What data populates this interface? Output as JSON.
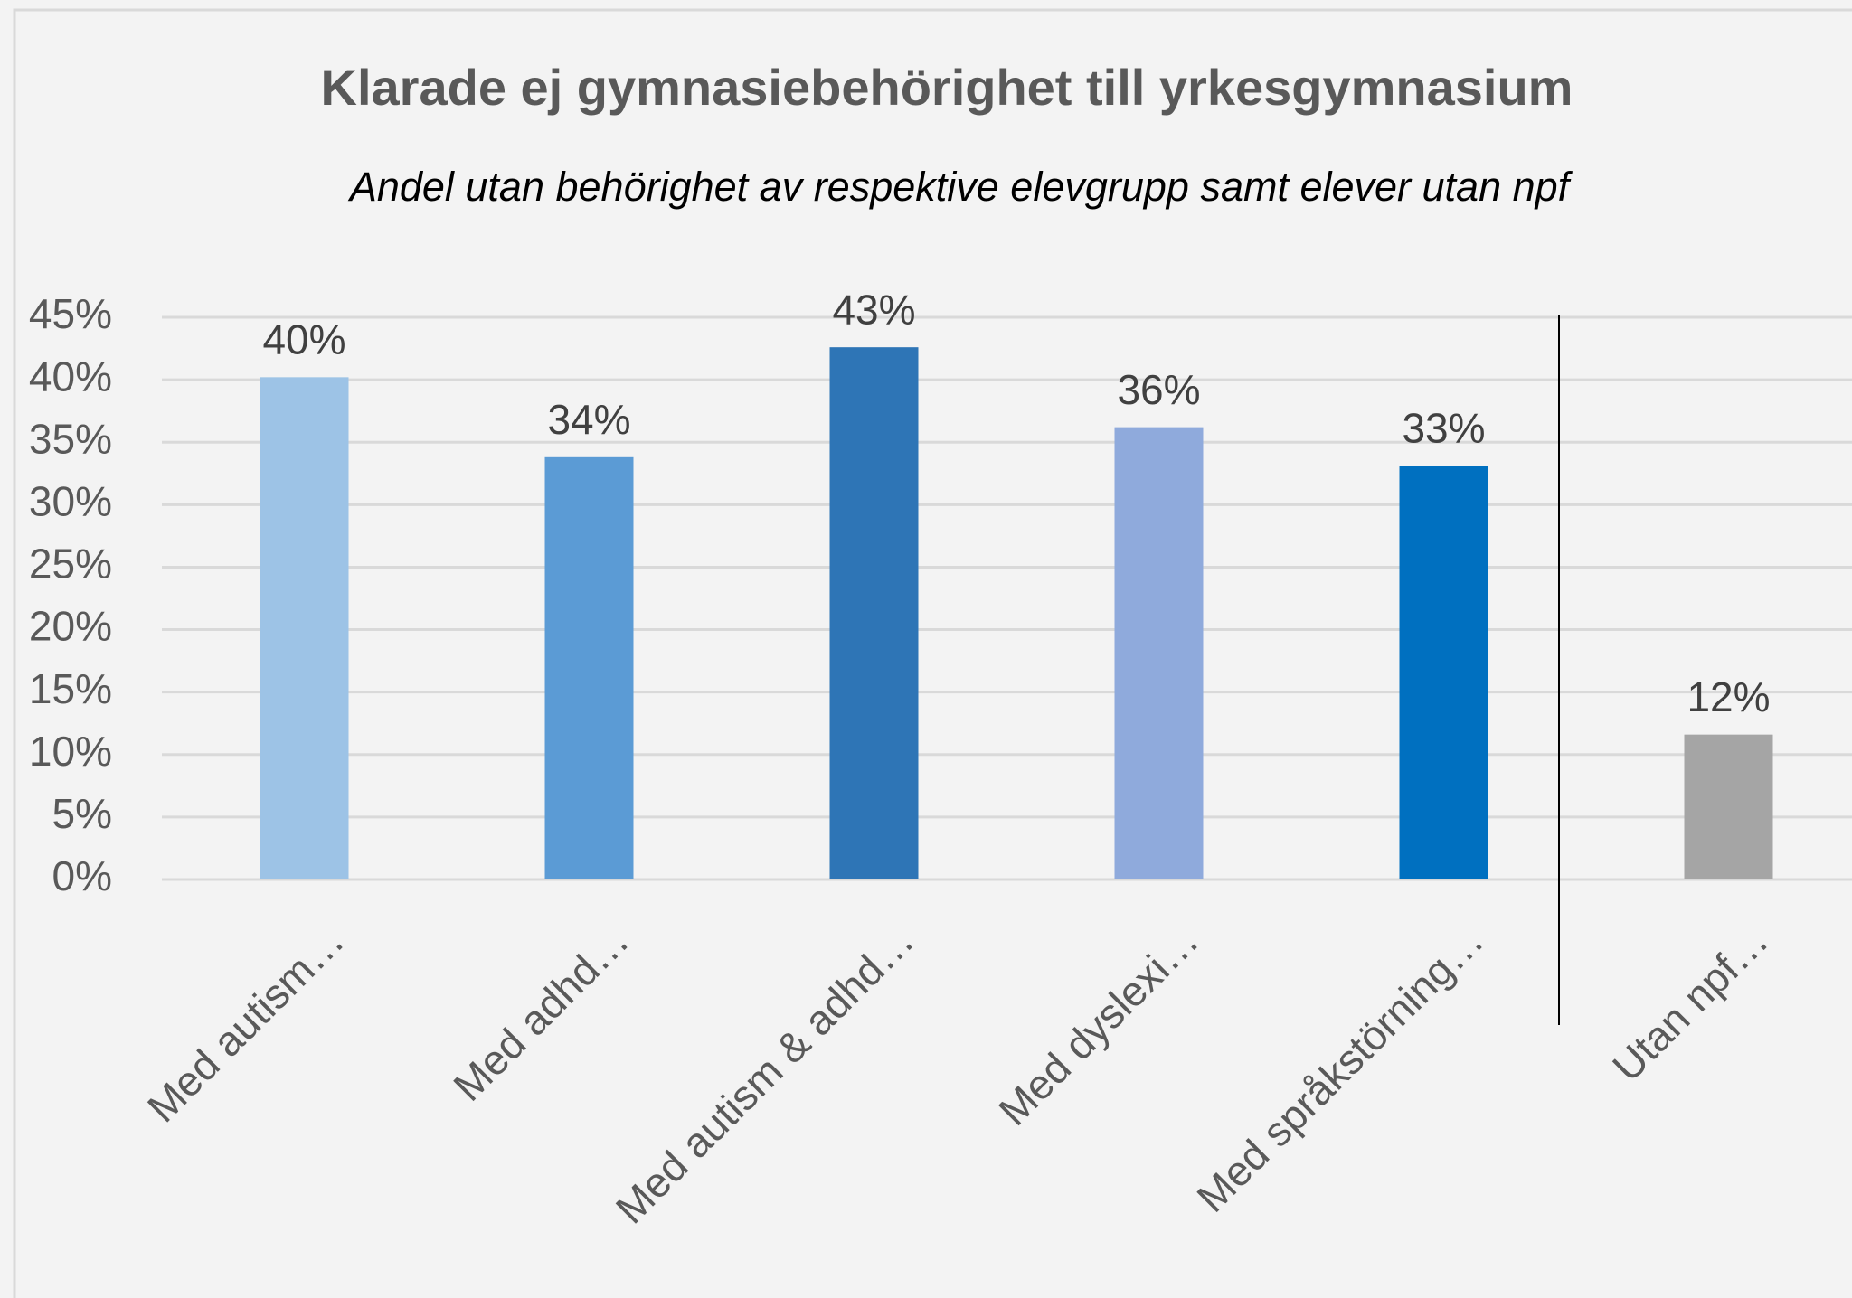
{
  "chart_data": {
    "type": "bar",
    "title": "Klarade ej gymnasiebehörighet till yrkesgymnasium",
    "subtitle": "Andel utan behörighet av respektive elevgrupp samt elever utan npf",
    "categories": [
      "Med autism…",
      "Med adhd…",
      "Med autism & adhd…",
      "Med dyslexi…",
      "Med språkstörning…",
      "Utan npf…"
    ],
    "values": [
      40.2,
      33.8,
      42.6,
      36.2,
      33.1,
      11.6
    ],
    "value_labels": [
      "40%",
      "34%",
      "43%",
      "36%",
      "33%",
      "12%"
    ],
    "colors": [
      "#9dc3e6",
      "#5b9bd5",
      "#2e75b6",
      "#8faadc",
      "#0070c0",
      "#a5a5a5"
    ],
    "ylim": [
      0,
      45
    ],
    "yticks": [
      {
        "value": 0,
        "label": "0%"
      },
      {
        "value": 5,
        "label": "5%"
      },
      {
        "value": 10,
        "label": "10%"
      },
      {
        "value": 15,
        "label": "15%"
      },
      {
        "value": 20,
        "label": "20%"
      },
      {
        "value": 25,
        "label": "25%"
      },
      {
        "value": 30,
        "label": "30%"
      },
      {
        "value": 35,
        "label": "35%"
      },
      {
        "value": 40,
        "label": "40%"
      },
      {
        "value": 45,
        "label": "45%"
      }
    ],
    "grid": true
  }
}
